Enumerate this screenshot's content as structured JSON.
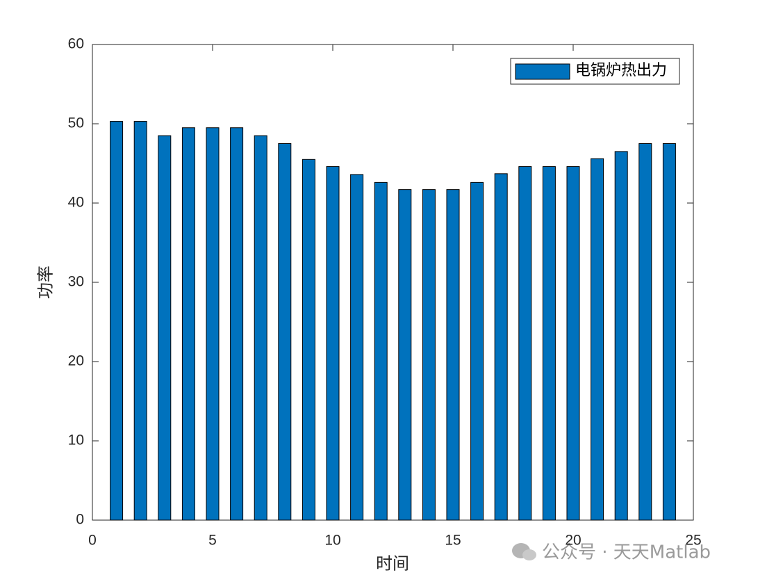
{
  "chart_data": {
    "type": "bar",
    "xlabel": "时间",
    "ylabel": "功率",
    "x": [
      1,
      2,
      3,
      4,
      5,
      6,
      7,
      8,
      9,
      10,
      11,
      12,
      13,
      14,
      15,
      16,
      17,
      18,
      19,
      20,
      21,
      22,
      23,
      24
    ],
    "series": [
      {
        "name": "电锅炉热出力",
        "color": "#0072bd",
        "values": [
          50.3,
          50.3,
          48.5,
          49.5,
          49.5,
          49.5,
          48.5,
          47.5,
          45.5,
          44.6,
          43.6,
          42.6,
          41.7,
          41.7,
          41.7,
          42.6,
          43.7,
          44.6,
          44.6,
          44.6,
          45.6,
          46.5,
          47.5,
          47.5
        ]
      }
    ],
    "xlim": [
      0,
      25
    ],
    "xticks": [
      0,
      5,
      10,
      15,
      20,
      25
    ],
    "ylim": [
      0,
      60
    ],
    "yticks": [
      0,
      10,
      20,
      30,
      40,
      50,
      60
    ],
    "grid": false,
    "legend": "northeast",
    "watermark": "公众号 · 天天Matlab"
  }
}
